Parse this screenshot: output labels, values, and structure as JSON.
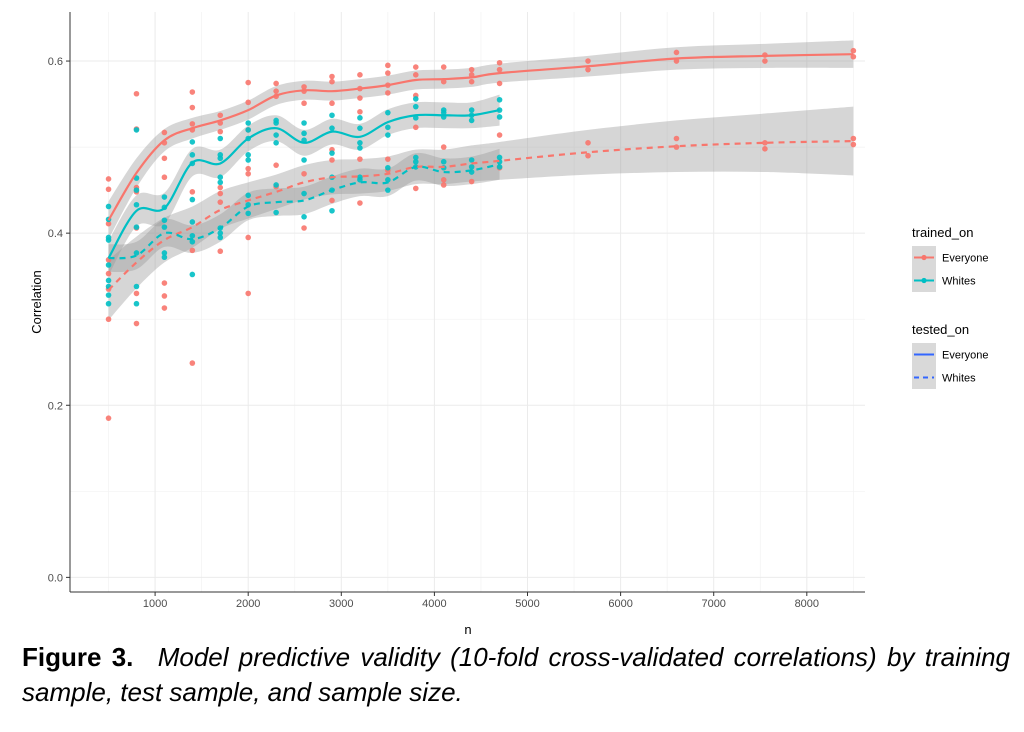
{
  "chart_data": {
    "type": "scatter",
    "title": "",
    "xlabel": "n",
    "ylabel": "Correlation",
    "xlim": [
      86,
      8625
    ],
    "ylim": [
      -0.017,
      0.657
    ],
    "xticks": [
      1000,
      2000,
      3000,
      4000,
      5000,
      6000,
      7000,
      8000
    ],
    "yticks": [
      0.0,
      0.2,
      0.4,
      0.6
    ],
    "ytick_labels": [
      "0.0",
      "0.2",
      "0.4",
      "0.6"
    ],
    "grid": true,
    "legend_placement": "right",
    "colors": {
      "Everyone": "#F8766D",
      "Whites": "#00BFC4",
      "legend_line": "#3366FF",
      "ribbon": "#999999"
    },
    "legend": {
      "trained_on": {
        "title": "trained_on",
        "entries": [
          "Everyone",
          "Whites"
        ]
      },
      "tested_on": {
        "title": "tested_on",
        "entries": [
          "Everyone",
          "Whites"
        ]
      }
    },
    "series": [
      {
        "trained_on": "Everyone",
        "tested_on": "Everyone",
        "line": "solid",
        "x": [
          500,
          800,
          1100,
          1400,
          1700,
          2000,
          2300,
          2600,
          2900,
          3200,
          3500,
          3800,
          4100,
          4400,
          4700,
          5650,
          6600,
          7550,
          8500
        ],
        "y": [
          0.415,
          0.47,
          0.508,
          0.522,
          0.531,
          0.543,
          0.56,
          0.566,
          0.565,
          0.568,
          0.572,
          0.578,
          0.579,
          0.581,
          0.586,
          0.594,
          0.603,
          0.606,
          0.608
        ],
        "ci": [
          0.022,
          0.017,
          0.013,
          0.012,
          0.011,
          0.011,
          0.011,
          0.011,
          0.011,
          0.011,
          0.011,
          0.011,
          0.011,
          0.011,
          0.011,
          0.012,
          0.013,
          0.014,
          0.016
        ]
      },
      {
        "trained_on": "Whites",
        "tested_on": "Everyone",
        "line": "solid",
        "x": [
          500,
          800,
          1100,
          1400,
          1700,
          2000,
          2300,
          2600,
          2900,
          3200,
          3500,
          3800,
          4100,
          4400,
          4700
        ],
        "y": [
          0.371,
          0.426,
          0.429,
          0.482,
          0.481,
          0.51,
          0.522,
          0.505,
          0.518,
          0.512,
          0.529,
          0.537,
          0.537,
          0.537,
          0.543
        ],
        "ci": [
          0.02,
          0.018,
          0.018,
          0.016,
          0.016,
          0.015,
          0.015,
          0.015,
          0.015,
          0.015,
          0.015,
          0.015,
          0.015,
          0.015,
          0.018
        ]
      },
      {
        "trained_on": "Everyone",
        "tested_on": "Whites",
        "line": "dashed",
        "x": [
          500,
          800,
          1100,
          1400,
          1700,
          2000,
          2300,
          2600,
          2900,
          3200,
          3500,
          3800,
          4100,
          4400,
          4700,
          5650,
          6600,
          7550,
          8500
        ],
        "y": [
          0.334,
          0.366,
          0.392,
          0.407,
          0.427,
          0.438,
          0.448,
          0.459,
          0.465,
          0.466,
          0.469,
          0.477,
          0.477,
          0.481,
          0.484,
          0.494,
          0.501,
          0.505,
          0.507
        ],
        "ci": [
          0.035,
          0.03,
          0.026,
          0.024,
          0.022,
          0.021,
          0.02,
          0.02,
          0.02,
          0.02,
          0.02,
          0.02,
          0.02,
          0.021,
          0.022,
          0.026,
          0.03,
          0.034,
          0.04
        ]
      },
      {
        "trained_on": "Whites",
        "tested_on": "Whites",
        "line": "dashed",
        "x": [
          500,
          800,
          1100,
          1400,
          1700,
          2000,
          2300,
          2600,
          2900,
          3200,
          3500,
          3800,
          4100,
          4400,
          4700
        ],
        "y": [
          0.371,
          0.374,
          0.4,
          0.393,
          0.406,
          0.431,
          0.436,
          0.438,
          0.45,
          0.459,
          0.459,
          0.477,
          0.471,
          0.473,
          0.48
        ],
        "ci": [
          0.016,
          0.016,
          0.016,
          0.016,
          0.016,
          0.016,
          0.016,
          0.016,
          0.016,
          0.016,
          0.016,
          0.016,
          0.016,
          0.016,
          0.018
        ]
      }
    ],
    "points": {
      "Everyone": [
        {
          "n": 500,
          "y": [
            0.463,
            0.451,
            0.411,
            0.369,
            0.353,
            0.335,
            0.3,
            0.185
          ]
        },
        {
          "n": 800,
          "y": [
            0.562,
            0.521,
            0.453,
            0.448,
            0.406,
            0.33,
            0.295
          ]
        },
        {
          "n": 1100,
          "y": [
            0.517,
            0.505,
            0.487,
            0.465,
            0.342,
            0.327,
            0.313
          ]
        },
        {
          "n": 1400,
          "y": [
            0.564,
            0.546,
            0.527,
            0.52,
            0.448,
            0.38,
            0.249
          ]
        },
        {
          "n": 1700,
          "y": [
            0.537,
            0.528,
            0.518,
            0.453,
            0.446,
            0.436,
            0.379
          ]
        },
        {
          "n": 2000,
          "y": [
            0.575,
            0.552,
            0.52,
            0.475,
            0.469,
            0.395,
            0.33
          ]
        },
        {
          "n": 2300,
          "y": [
            0.574,
            0.565,
            0.559,
            0.479,
            0.454
          ]
        },
        {
          "n": 2600,
          "y": [
            0.57,
            0.565,
            0.551,
            0.469,
            0.406
          ]
        },
        {
          "n": 2900,
          "y": [
            0.582,
            0.576,
            0.551,
            0.497,
            0.485,
            0.438
          ]
        },
        {
          "n": 3200,
          "y": [
            0.584,
            0.568,
            0.557,
            0.541,
            0.486,
            0.435
          ]
        },
        {
          "n": 3500,
          "y": [
            0.595,
            0.586,
            0.572,
            0.563,
            0.486,
            0.473
          ]
        },
        {
          "n": 3800,
          "y": [
            0.593,
            0.584,
            0.56,
            0.523,
            0.452
          ]
        },
        {
          "n": 4100,
          "y": [
            0.593,
            0.576,
            0.5,
            0.462,
            0.456
          ]
        },
        {
          "n": 4400,
          "y": [
            0.59,
            0.584,
            0.576,
            0.46
          ]
        },
        {
          "n": 4700,
          "y": [
            0.598,
            0.59,
            0.574,
            0.514,
            0.476
          ]
        },
        {
          "n": 5650,
          "y": [
            0.6,
            0.59,
            0.505,
            0.49
          ]
        },
        {
          "n": 6600,
          "y": [
            0.61,
            0.6,
            0.51,
            0.5
          ]
        },
        {
          "n": 7550,
          "y": [
            0.607,
            0.6,
            0.505,
            0.498
          ]
        },
        {
          "n": 8500,
          "y": [
            0.612,
            0.605,
            0.51,
            0.503
          ]
        }
      ],
      "Whites": [
        {
          "n": 500,
          "y": [
            0.431,
            0.416,
            0.395,
            0.392,
            0.363,
            0.345,
            0.338,
            0.328,
            0.318
          ]
        },
        {
          "n": 800,
          "y": [
            0.52,
            0.464,
            0.45,
            0.433,
            0.407,
            0.377,
            0.338,
            0.318
          ]
        },
        {
          "n": 1100,
          "y": [
            0.442,
            0.43,
            0.415,
            0.407,
            0.377,
            0.372
          ]
        },
        {
          "n": 1400,
          "y": [
            0.506,
            0.491,
            0.481,
            0.439,
            0.413,
            0.397,
            0.39,
            0.352
          ]
        },
        {
          "n": 1700,
          "y": [
            0.51,
            0.491,
            0.487,
            0.465,
            0.459,
            0.406,
            0.4,
            0.395
          ]
        },
        {
          "n": 2000,
          "y": [
            0.528,
            0.52,
            0.51,
            0.491,
            0.485,
            0.444,
            0.433,
            0.423
          ]
        },
        {
          "n": 2300,
          "y": [
            0.531,
            0.528,
            0.514,
            0.505,
            0.456,
            0.424
          ]
        },
        {
          "n": 2600,
          "y": [
            0.528,
            0.516,
            0.508,
            0.485,
            0.446,
            0.419
          ]
        },
        {
          "n": 2900,
          "y": [
            0.537,
            0.522,
            0.493,
            0.465,
            0.45,
            0.426
          ]
        },
        {
          "n": 3200,
          "y": [
            0.534,
            0.522,
            0.505,
            0.499,
            0.465,
            0.462
          ]
        },
        {
          "n": 3500,
          "y": [
            0.54,
            0.523,
            0.514,
            0.476,
            0.462,
            0.45
          ]
        },
        {
          "n": 3800,
          "y": [
            0.556,
            0.547,
            0.534,
            0.488,
            0.483,
            0.477
          ]
        },
        {
          "n": 4100,
          "y": [
            0.543,
            0.54,
            0.535,
            0.483,
            0.476
          ]
        },
        {
          "n": 4400,
          "y": [
            0.543,
            0.537,
            0.531,
            0.485,
            0.477,
            0.471
          ]
        },
        {
          "n": 4700,
          "y": [
            0.555,
            0.543,
            0.535,
            0.488,
            0.483,
            0.477
          ]
        }
      ]
    }
  },
  "caption": {
    "figure_label": "Figure 3.",
    "text": "Model predictive validity (10-fold cross-validated correlations) by training sample, test sample, and sample size."
  }
}
